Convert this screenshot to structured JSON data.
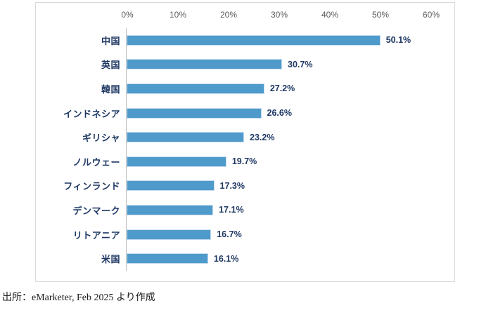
{
  "chart_data": {
    "type": "bar",
    "orientation": "horizontal",
    "categories": [
      "中国",
      "英国",
      "韓国",
      "インドネシア",
      "ギリシャ",
      "ノルウェー",
      "フィンランド",
      "デンマーク",
      "リトアニア",
      "米国"
    ],
    "values": [
      50.1,
      30.7,
      27.2,
      26.6,
      23.2,
      19.7,
      17.3,
      17.1,
      16.7,
      16.1
    ],
    "value_labels": [
      "50.1%",
      "30.7%",
      "27.2%",
      "26.6%",
      "23.2%",
      "19.7%",
      "17.3%",
      "17.1%",
      "16.7%",
      "16.1%"
    ],
    "x_axis": {
      "position": "top",
      "min": 0,
      "max": 60,
      "ticks": [
        "0%",
        "10%",
        "20%",
        "30%",
        "40%",
        "50%",
        "60%"
      ]
    },
    "grid": false,
    "legend": false,
    "colors": {
      "bar_fill": "#4e9acb",
      "bar_edge": "#c5dcef",
      "category_label": "#1f3864",
      "value_label": "#1f3864",
      "axis_tick": "#595959",
      "axis_line": "#bfbfbf",
      "frame_border": "#d9d9d9"
    }
  },
  "source_note": "出所：eMarketer, Feb 2025 より作成"
}
